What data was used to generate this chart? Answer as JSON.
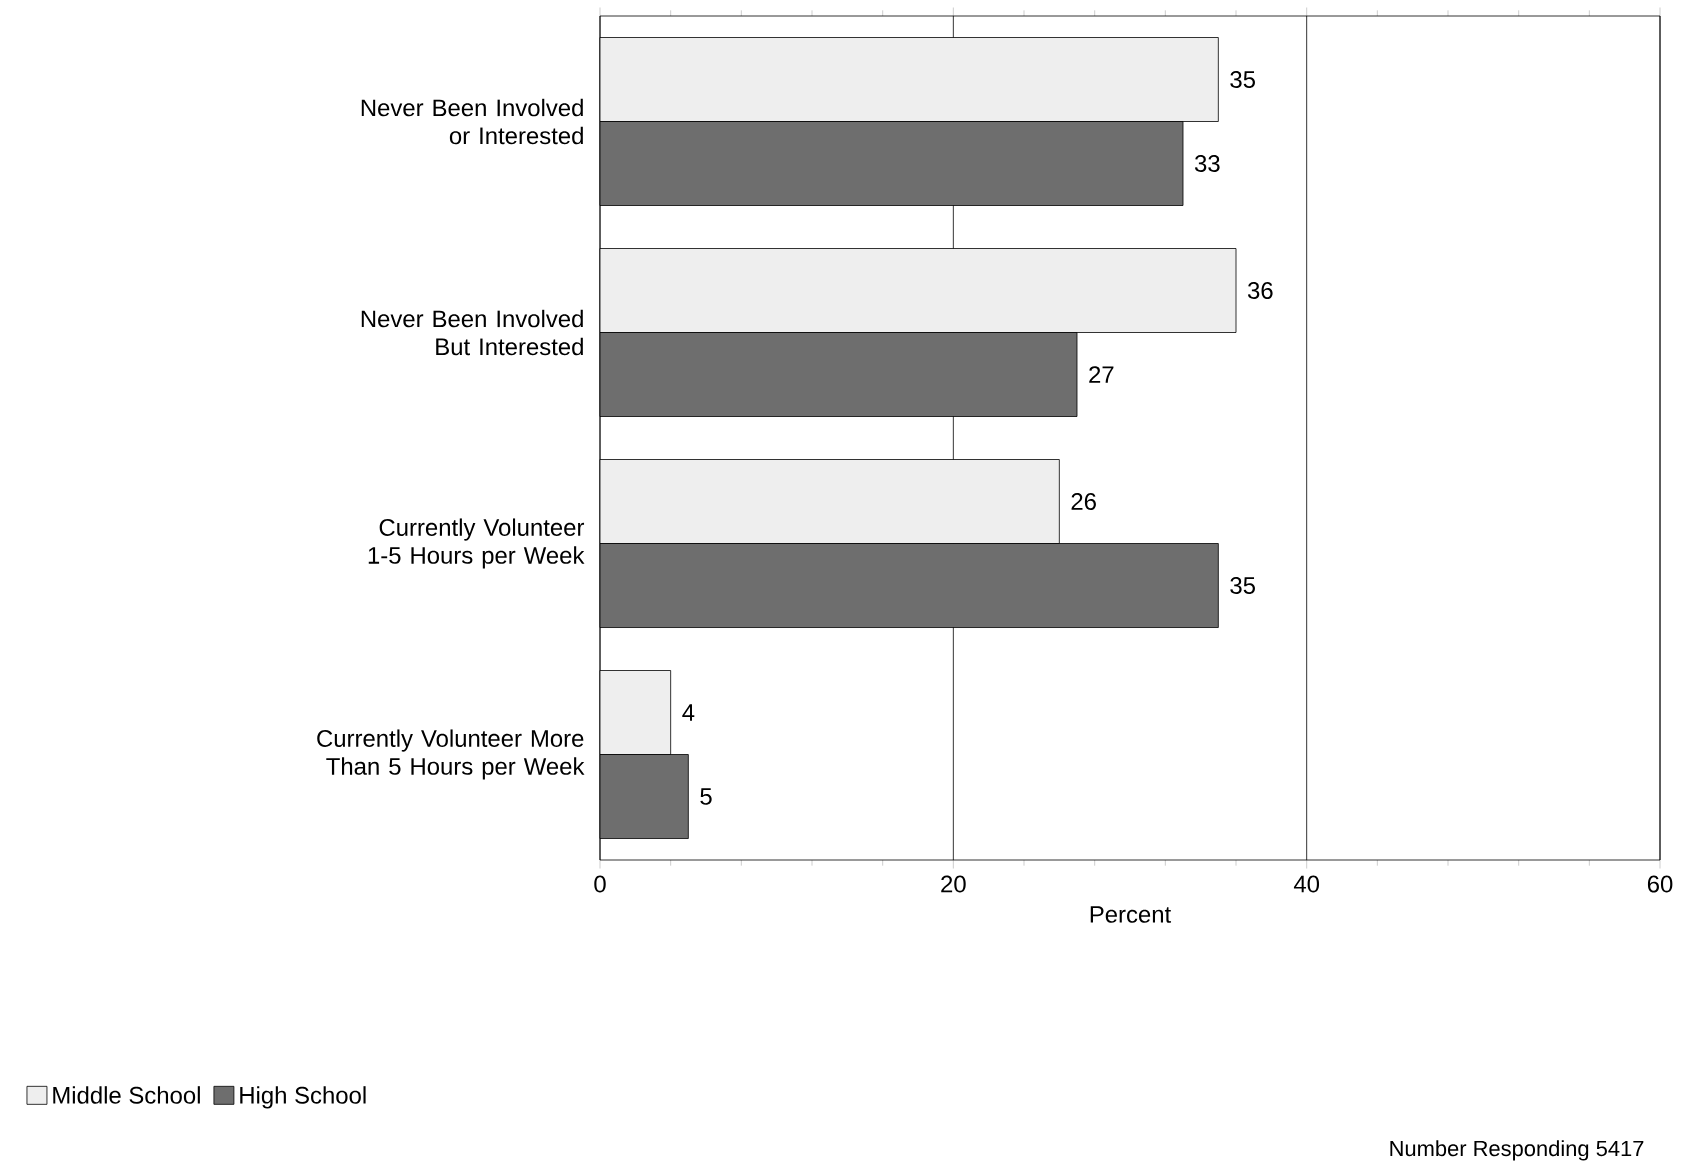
{
  "chart_data": {
    "type": "bar",
    "orientation": "horizontal",
    "xlabel": "Percent",
    "categories": [
      "Never Been Involved or Interested",
      "Never Been Involved But Interested",
      "Currently Volunteer 1-5 Hours per Week",
      "Currently Volunteer More Than 5 Hours per Week"
    ],
    "series": [
      {
        "name": "Middle School",
        "color": "#eeeeee",
        "values": [
          35,
          36,
          26,
          4
        ]
      },
      {
        "name": "High School",
        "color": "#6e6e6e",
        "values": [
          33,
          27,
          35,
          5
        ]
      }
    ],
    "xlim": [
      0,
      60
    ],
    "xticks": [
      0,
      20,
      40,
      60
    ],
    "grid": "x",
    "data_labels": true,
    "legend": "bottom left",
    "annotations": [
      "Number Responding 5417"
    ]
  }
}
